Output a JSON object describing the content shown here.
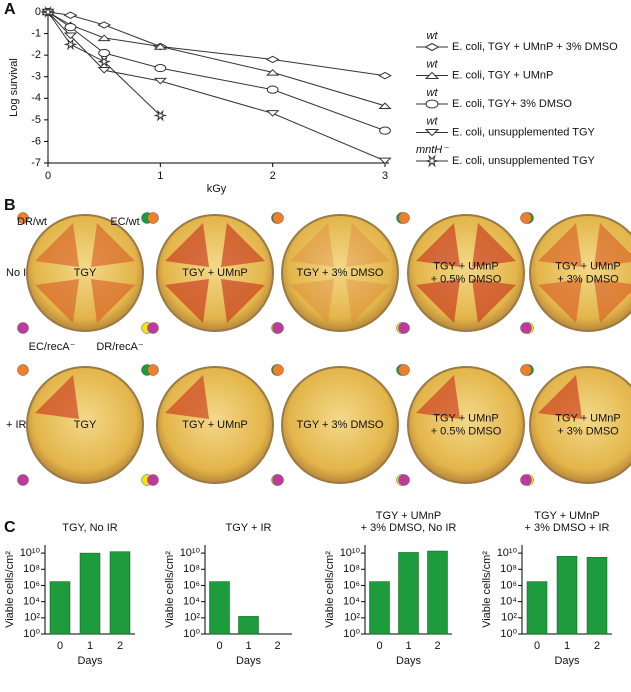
{
  "panel_labels": [
    "A",
    "B",
    "C"
  ],
  "chart_data": [
    {
      "type": "line",
      "xlabel": "kGy",
      "ylabel": "Log survival",
      "x": [
        0,
        0.2,
        0.5,
        1,
        2,
        3
      ],
      "xlim": [
        0,
        3
      ],
      "xticks": [
        0,
        1,
        2,
        3
      ],
      "ylim": [
        -7,
        0
      ],
      "yticks": [
        0,
        -1,
        -2,
        -3,
        -4,
        -5,
        -6,
        -7
      ],
      "series": [
        {
          "name": "E. coli, TGY + UMnP + 3% DMSO",
          "genotype": "wt",
          "marker": "diamond",
          "color": "#333333",
          "values": [
            0,
            -0.15,
            -0.6,
            -1.6,
            -2.2,
            -2.95
          ]
        },
        {
          "name": "E. coli, TGY + UMnP",
          "genotype": "wt",
          "marker": "triangle",
          "color": "#333333",
          "values": [
            0,
            -0.6,
            -1.2,
            -1.6,
            -2.8,
            -4.35
          ]
        },
        {
          "name": "E. coli, TGY+ 3% DMSO",
          "genotype": "wt",
          "marker": "circle",
          "color": "#333333",
          "values": [
            0,
            -0.7,
            -1.9,
            -2.6,
            -3.6,
            -5.5
          ]
        },
        {
          "name": "E. coli, unsupplemented TGY",
          "genotype": "wt",
          "marker": "triangle-down",
          "color": "#333333",
          "values": [
            0,
            -1.1,
            -2.7,
            -3.2,
            -4.7,
            -6.9
          ]
        },
        {
          "name": "E. coli, unsupplemented TGY",
          "genotype": "mntH⁻",
          "marker": "star",
          "color": "#333333",
          "values": [
            0,
            -1.5,
            -2.3,
            -4.8,
            null,
            null
          ]
        }
      ]
    },
    {
      "type": "bar",
      "title": [
        "TGY, No IR"
      ],
      "xlabel": "Days",
      "ylabel": "Viable cells/cm²",
      "categories": [
        "0",
        "1",
        "2"
      ],
      "values": [
        3000000,
        10000000000,
        15000000000
      ],
      "color": "#1e9b3c",
      "log": true,
      "ylim": [
        1,
        100000000000
      ],
      "yticks": [
        {
          "value": 1,
          "label": "10⁰"
        },
        {
          "value": 100,
          "label": "10²"
        },
        {
          "value": 10000,
          "label": "10⁴"
        },
        {
          "value": 1000000,
          "label": "10⁶"
        },
        {
          "value": 100000000,
          "label": "10⁸"
        },
        {
          "value": 10000000000,
          "label": "10¹⁰"
        }
      ]
    },
    {
      "type": "bar",
      "title": [
        "TGY + IR"
      ],
      "xlabel": "Days",
      "ylabel": "Viable cells/cm²",
      "categories": [
        "0",
        "1",
        "2"
      ],
      "values": [
        3000000,
        150,
        null
      ],
      "color": "#1e9b3c",
      "log": true,
      "ylim": [
        1,
        100000000000
      ],
      "yticks": [
        {
          "value": 1,
          "label": "10⁰"
        },
        {
          "value": 100,
          "label": "10²"
        },
        {
          "value": 10000,
          "label": "10⁴"
        },
        {
          "value": 1000000,
          "label": "10⁶"
        },
        {
          "value": 100000000,
          "label": "10⁸"
        },
        {
          "value": 10000000000,
          "label": "10¹⁰"
        }
      ]
    },
    {
      "type": "bar",
      "title": [
        "TGY + UMnP",
        "+ 3% DMSO, No IR"
      ],
      "xlabel": "Days",
      "ylabel": "Viable cells/cm²",
      "categories": [
        "0",
        "1",
        "2"
      ],
      "values": [
        3000000,
        12000000000,
        18000000000
      ],
      "color": "#1e9b3c",
      "log": true,
      "ylim": [
        1,
        100000000000
      ],
      "yticks": [
        {
          "value": 1,
          "label": "10⁰"
        },
        {
          "value": 100,
          "label": "10²"
        },
        {
          "value": 10000,
          "label": "10⁴"
        },
        {
          "value": 1000000,
          "label": "10⁶"
        },
        {
          "value": 100000000,
          "label": "10⁸"
        },
        {
          "value": 10000000000,
          "label": "10¹⁰"
        }
      ]
    },
    {
      "type": "bar",
      "title": [
        "TGY + UMnP",
        "+ 3% DMSO + IR"
      ],
      "xlabel": "Days",
      "ylabel": "Viable cells/cm²",
      "categories": [
        "0",
        "1",
        "2"
      ],
      "values": [
        3000000,
        4000000000,
        3000000000
      ],
      "color": "#1e9b3c",
      "log": true,
      "ylim": [
        1,
        100000000000
      ],
      "yticks": [
        {
          "value": 1,
          "label": "10⁰"
        },
        {
          "value": 100,
          "label": "10²"
        },
        {
          "value": 10000,
          "label": "10⁴"
        },
        {
          "value": 1000000,
          "label": "10⁶"
        },
        {
          "value": 100000000,
          "label": "10⁸"
        },
        {
          "value": 10000000000,
          "label": "10¹⁰"
        }
      ]
    }
  ],
  "plates": {
    "row_labels": [
      "No IR",
      "+ IR"
    ],
    "quadrant_labels": [
      "DR/wt",
      "EC/wt",
      "EC/recA⁻",
      "DR/recA⁻"
    ],
    "rows": [
      [
        [
          "TGY"
        ],
        [
          "TGY + UMnP"
        ],
        [
          "TGY + 3% DMSO"
        ],
        [
          "TGY + UMnP",
          "+ 0.5% DMSO"
        ],
        [
          "TGY + UMnP",
          "+ 3% DMSO"
        ]
      ],
      [
        [
          "TGY"
        ],
        [
          "TGY + UMnP"
        ],
        [
          "TGY + 3% DMSO"
        ],
        [
          "TGY + UMnP",
          "+ 0.5% DMSO"
        ],
        [
          "TGY + UMnP",
          "+ 3% DMSO"
        ]
      ]
    ]
  }
}
